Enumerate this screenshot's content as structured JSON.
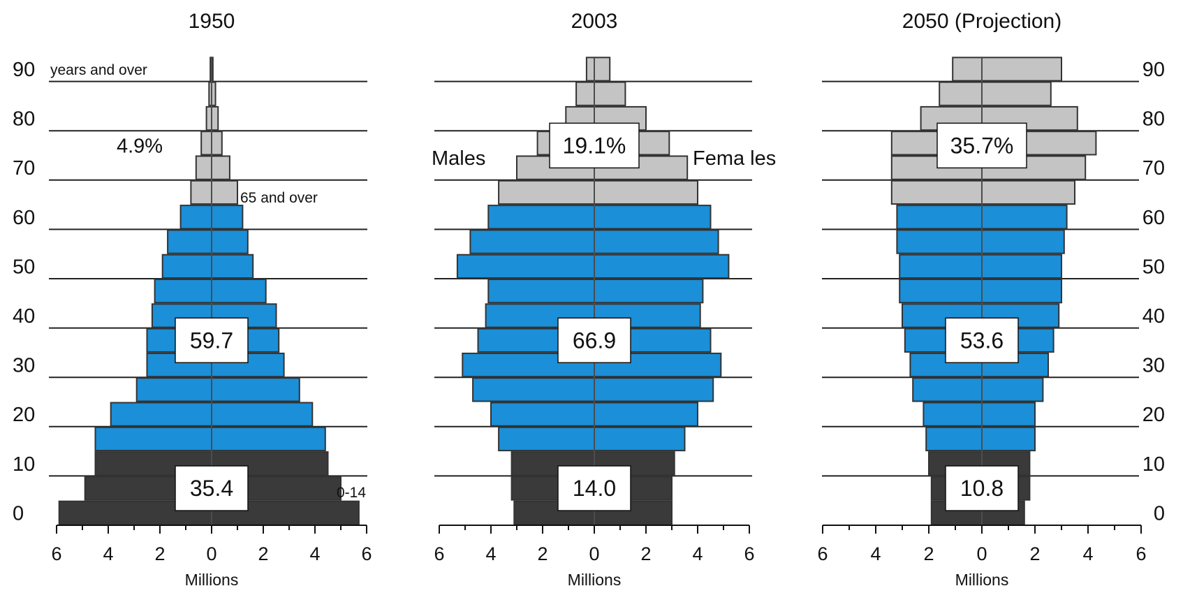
{
  "chart_data": {
    "type": "bar",
    "subtype": "population-pyramid",
    "age_groups": [
      "0-4",
      "5-9",
      "10-14",
      "15-19",
      "20-24",
      "25-29",
      "30-34",
      "35-39",
      "40-44",
      "45-49",
      "50-54",
      "55-59",
      "60-64",
      "65-69",
      "70-74",
      "75-79",
      "80-84",
      "85-89",
      "90+"
    ],
    "colors": {
      "youth": "#3a3a3a",
      "working": "#1b8fd8",
      "elderly": "#c4c4c4",
      "edge": "#333333"
    },
    "x_ticks": [
      "6",
      "4",
      "2",
      "0",
      "2",
      "4",
      "6"
    ],
    "xlabel": "Millions",
    "age_ticks": [
      "90",
      "80",
      "70",
      "60",
      "50",
      "40",
      "30",
      "20",
      "10",
      "0"
    ],
    "panels": [
      {
        "title": "1950",
        "males": [
          5.9,
          4.9,
          4.5,
          4.5,
          3.9,
          2.9,
          2.5,
          2.5,
          2.3,
          2.2,
          1.9,
          1.7,
          1.2,
          0.8,
          0.6,
          0.4,
          0.2,
          0.1,
          0.05
        ],
        "females": [
          5.7,
          5.0,
          4.5,
          4.4,
          3.9,
          3.4,
          2.8,
          2.6,
          2.5,
          2.1,
          1.6,
          1.4,
          1.2,
          1.0,
          0.7,
          0.4,
          0.25,
          0.15,
          0.05
        ],
        "box_labels": {
          "youth": "35.4",
          "working": "59.7",
          "elderly": "4.9%"
        },
        "annotations": {
          "top": "years and over",
          "elderly": "65 and over",
          "youth": "0-14"
        }
      },
      {
        "title": "2003",
        "males": [
          3.1,
          3.2,
          3.2,
          3.7,
          4.0,
          4.7,
          5.1,
          4.5,
          4.2,
          4.1,
          5.3,
          4.8,
          4.1,
          3.7,
          3.0,
          2.2,
          1.1,
          0.7,
          0.3
        ],
        "females": [
          3.0,
          3.0,
          3.1,
          3.5,
          4.0,
          4.6,
          4.9,
          4.5,
          4.1,
          4.2,
          5.2,
          4.8,
          4.5,
          4.0,
          3.6,
          2.9,
          2.0,
          1.2,
          0.6
        ],
        "box_labels": {
          "youth": "14.0",
          "working": "66.9",
          "elderly": "19.1%"
        },
        "annotations": {
          "males": "Males",
          "females": "Fema les"
        }
      },
      {
        "title": "2050 (Projection)",
        "males": [
          1.9,
          1.9,
          2.0,
          2.1,
          2.2,
          2.6,
          2.7,
          2.9,
          3.0,
          3.1,
          3.1,
          3.2,
          3.2,
          3.4,
          3.4,
          3.4,
          2.3,
          1.6,
          1.1
        ],
        "females": [
          1.6,
          1.8,
          1.8,
          2.0,
          2.0,
          2.3,
          2.5,
          2.7,
          2.9,
          3.0,
          3.0,
          3.1,
          3.2,
          3.5,
          3.9,
          4.3,
          3.6,
          2.6,
          3.0
        ],
        "box_labels": {
          "youth": "10.8",
          "working": "53.6",
          "elderly": "35.7%"
        },
        "annotations": {}
      }
    ]
  }
}
